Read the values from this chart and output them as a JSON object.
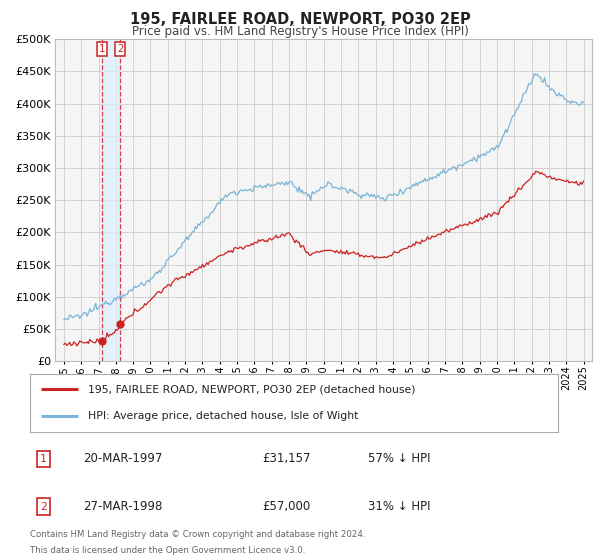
{
  "title": "195, FAIRLEE ROAD, NEWPORT, PO30 2EP",
  "subtitle": "Price paid vs. HM Land Registry's House Price Index (HPI)",
  "legend_line1": "195, FAIRLEE ROAD, NEWPORT, PO30 2EP (detached house)",
  "legend_line2": "HPI: Average price, detached house, Isle of Wight",
  "sale1_date": "20-MAR-1997",
  "sale1_price": "£31,157",
  "sale1_pct": "57% ↓ HPI",
  "sale2_date": "27-MAR-1998",
  "sale2_price": "£57,000",
  "sale2_pct": "31% ↓ HPI",
  "footer1": "Contains HM Land Registry data © Crown copyright and database right 2024.",
  "footer2": "This data is licensed under the Open Government Licence v3.0.",
  "hpi_color": "#7ab4d8",
  "price_color": "#cc2222",
  "marker_color": "#cc2222",
  "shade_color": "#ddeeff",
  "background_color": "#f5f5f5",
  "grid_color": "#cccccc",
  "ylim": [
    0,
    500000
  ],
  "yticks": [
    0,
    50000,
    100000,
    150000,
    200000,
    250000,
    300000,
    350000,
    400000,
    450000,
    500000
  ],
  "sale1_year": 1997.22,
  "sale1_value": 31157,
  "sale2_year": 1998.24,
  "sale2_value": 57000,
  "xmin": 1995,
  "xmax": 2025
}
